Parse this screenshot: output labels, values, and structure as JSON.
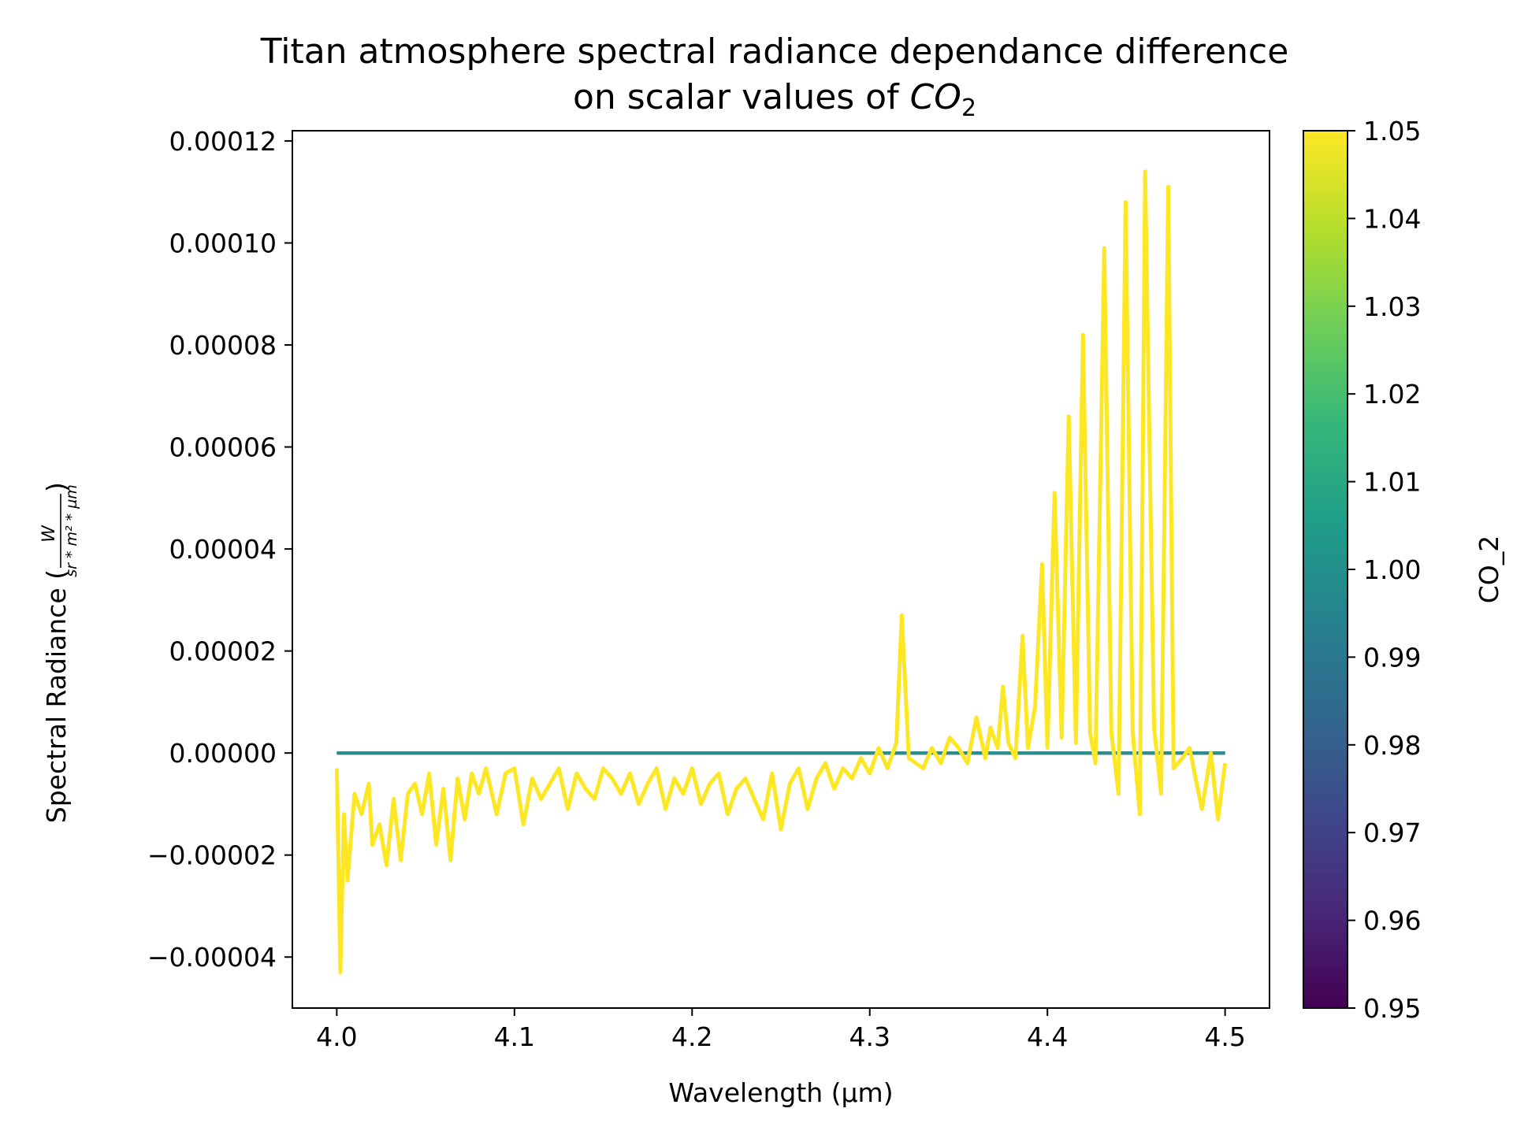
{
  "chart_data": {
    "type": "line",
    "title_line1": "Titan atmosphere spectral radiance dependance difference",
    "title_line2_prefix": "on scalar values of ",
    "title_math": "CO",
    "title_math_sub": "2",
    "xlabel": "Wavelength (µm)",
    "ylabel_prefix": "Spectral Radiance (",
    "ylabel_frac_num": "W",
    "ylabel_frac_den": "sr * m² * µm",
    "ylabel_suffix": ")",
    "xlim": [
      3.975,
      4.525
    ],
    "ylim": [
      -5e-05,
      0.000122
    ],
    "x_ticks": [
      {
        "value": 4.0,
        "label": "4.0"
      },
      {
        "value": 4.1,
        "label": "4.1"
      },
      {
        "value": 4.2,
        "label": "4.2"
      },
      {
        "value": 4.3,
        "label": "4.3"
      },
      {
        "value": 4.4,
        "label": "4.4"
      },
      {
        "value": 4.5,
        "label": "4.5"
      }
    ],
    "y_ticks": [
      {
        "value": -4e-05,
        "label": "−0.00004"
      },
      {
        "value": -2e-05,
        "label": "−0.00002"
      },
      {
        "value": 0.0,
        "label": "0.00000"
      },
      {
        "value": 2e-05,
        "label": "0.00002"
      },
      {
        "value": 4e-05,
        "label": "0.00004"
      },
      {
        "value": 6e-05,
        "label": "0.00006"
      },
      {
        "value": 8e-05,
        "label": "0.00008"
      },
      {
        "value": 0.0001,
        "label": "0.00010"
      },
      {
        "value": 0.00012,
        "label": "0.00012"
      }
    ],
    "series": [
      {
        "colorvalue": 0.95,
        "color": "#440154",
        "x": [
          4.0,
          4.5
        ],
        "values": [
          0.0,
          0.0
        ]
      },
      {
        "colorvalue": 1.0,
        "color": "#21918c",
        "x": [
          4.0,
          4.5
        ],
        "values": [
          0.0,
          0.0
        ]
      },
      {
        "colorvalue": 1.05,
        "color": "#fde725",
        "x": [
          4.0,
          4.002,
          4.004,
          4.006,
          4.01,
          4.014,
          4.018,
          4.02,
          4.024,
          4.028,
          4.032,
          4.036,
          4.04,
          4.044,
          4.048,
          4.052,
          4.056,
          4.06,
          4.064,
          4.068,
          4.072,
          4.076,
          4.08,
          4.084,
          4.09,
          4.095,
          4.1,
          4.105,
          4.11,
          4.115,
          4.12,
          4.125,
          4.13,
          4.135,
          4.14,
          4.145,
          4.15,
          4.155,
          4.16,
          4.165,
          4.17,
          4.175,
          4.18,
          4.185,
          4.19,
          4.195,
          4.2,
          4.205,
          4.21,
          4.215,
          4.22,
          4.225,
          4.23,
          4.235,
          4.24,
          4.245,
          4.25,
          4.255,
          4.26,
          4.265,
          4.27,
          4.275,
          4.28,
          4.285,
          4.29,
          4.295,
          4.3,
          4.305,
          4.31,
          4.315,
          4.318,
          4.322,
          4.33,
          4.335,
          4.34,
          4.345,
          4.35,
          4.355,
          4.36,
          4.365,
          4.368,
          4.372,
          4.375,
          4.378,
          4.382,
          4.386,
          4.389,
          4.393,
          4.397,
          4.4,
          4.404,
          4.408,
          4.412,
          4.416,
          4.42,
          4.424,
          4.427,
          4.432,
          4.436,
          4.44,
          4.444,
          4.448,
          4.452,
          4.455,
          4.46,
          4.464,
          4.468,
          4.471,
          4.476,
          4.48,
          4.484,
          4.487,
          4.492,
          4.496,
          4.5
        ],
        "values": [
          -3e-06,
          -4.3e-05,
          -1.2e-05,
          -2.5e-05,
          -8e-06,
          -1.2e-05,
          -6e-06,
          -1.8e-05,
          -1.4e-05,
          -2.2e-05,
          -9e-06,
          -2.1e-05,
          -8e-06,
          -6e-06,
          -1.2e-05,
          -4e-06,
          -1.8e-05,
          -7e-06,
          -2.1e-05,
          -5e-06,
          -1.3e-05,
          -4e-06,
          -8e-06,
          -3e-06,
          -1.2e-05,
          -4e-06,
          -3e-06,
          -1.4e-05,
          -5e-06,
          -9e-06,
          -6e-06,
          -3e-06,
          -1.1e-05,
          -4e-06,
          -7e-06,
          -9e-06,
          -3e-06,
          -5e-06,
          -8e-06,
          -4e-06,
          -1e-05,
          -6e-06,
          -3e-06,
          -1.1e-05,
          -5e-06,
          -8e-06,
          -3e-06,
          -1e-05,
          -6e-06,
          -4e-06,
          -1.2e-05,
          -7e-06,
          -5e-06,
          -9e-06,
          -1.3e-05,
          -4e-06,
          -1.5e-05,
          -6e-06,
          -3e-06,
          -1.1e-05,
          -5e-06,
          -2e-06,
          -7e-06,
          -3e-06,
          -5e-06,
          -1e-06,
          -4e-06,
          1e-06,
          -3e-06,
          2e-06,
          2.7e-05,
          -1e-06,
          -3e-06,
          1e-06,
          -2e-06,
          3e-06,
          1e-06,
          -2e-06,
          7e-06,
          -1e-06,
          5e-06,
          1e-06,
          1.3e-05,
          2e-06,
          -1e-06,
          2.3e-05,
          1e-06,
          9e-06,
          3.7e-05,
          1e-06,
          5.1e-05,
          3e-06,
          6.6e-05,
          2e-06,
          8.2e-05,
          4e-06,
          -2e-06,
          9.9e-05,
          4e-06,
          -8e-06,
          0.000108,
          4e-06,
          -1.2e-05,
          0.000114,
          5e-06,
          -8e-06,
          0.000111,
          -3e-06,
          -1e-06,
          1e-06,
          -6e-06,
          -1.1e-05,
          0.0,
          -1.3e-05,
          -2e-06
        ]
      }
    ],
    "colorbar": {
      "label": "CO_2",
      "vmin": 0.95,
      "vmax": 1.05,
      "stops": [
        "#440154",
        "#482878",
        "#3e4989",
        "#31688e",
        "#26828e",
        "#1f9e89",
        "#35b779",
        "#6ece58",
        "#b5de2b",
        "#fde725"
      ],
      "ticks": [
        {
          "value": 0.95,
          "label": "0.95"
        },
        {
          "value": 0.96,
          "label": "0.96"
        },
        {
          "value": 0.97,
          "label": "0.97"
        },
        {
          "value": 0.98,
          "label": "0.98"
        },
        {
          "value": 0.99,
          "label": "0.99"
        },
        {
          "value": 1.0,
          "label": "1.00"
        },
        {
          "value": 1.01,
          "label": "1.01"
        },
        {
          "value": 1.02,
          "label": "1.02"
        },
        {
          "value": 1.03,
          "label": "1.03"
        },
        {
          "value": 1.04,
          "label": "1.04"
        },
        {
          "value": 1.05,
          "label": "1.05"
        }
      ]
    },
    "legend": "none",
    "grid": false
  }
}
